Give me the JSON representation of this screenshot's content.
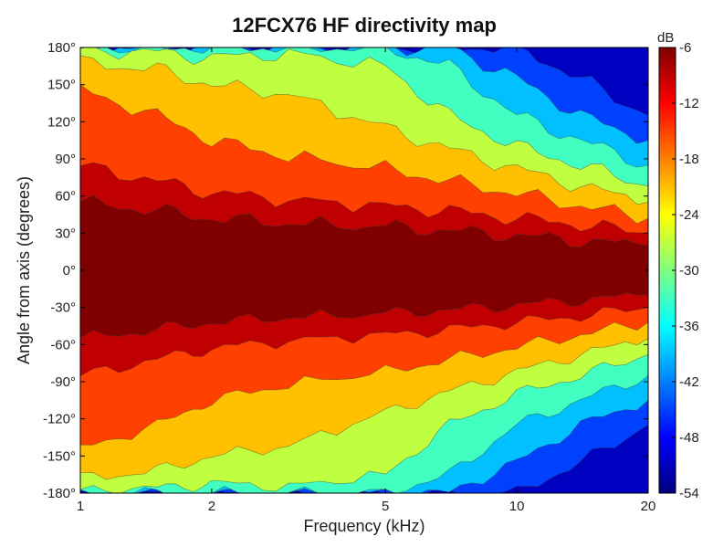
{
  "chart_data": {
    "type": "heatmap",
    "title": "12FCX76 HF directivity map",
    "xlabel": "Frequency (kHz)",
    "ylabel": "Angle from axis (degrees)",
    "x_scale": "log",
    "xlim": [
      1,
      20
    ],
    "x_ticks": [
      1,
      2,
      5,
      10,
      20
    ],
    "x_tick_labels": [
      "1",
      "2",
      "5",
      "10",
      "20"
    ],
    "ylim": [
      -180,
      180
    ],
    "y_ticks": [
      180,
      150,
      120,
      90,
      60,
      30,
      0,
      -30,
      -60,
      -90,
      -120,
      -150,
      -180
    ],
    "y_tick_labels": [
      "180°",
      "150°",
      "120°",
      "90°",
      "60°",
      "30°",
      "0°",
      "-30°",
      "-60°",
      "-90°",
      "-120°",
      "-150°",
      "-180°"
    ],
    "colorbar": {
      "unit": "dB",
      "range": [
        -54,
        -6
      ],
      "ticks": [
        -6,
        -12,
        -18,
        -24,
        -30,
        -36,
        -42,
        -48,
        -54
      ],
      "tick_labels": [
        "-6",
        "-12",
        "-18",
        "-24",
        "-30",
        "-36",
        "-42",
        "-48",
        "-54"
      ],
      "colormap": "jet"
    },
    "contour_levels_db": [
      -6,
      -12,
      -18,
      -24,
      -30,
      -36,
      -42,
      -48,
      -54
    ],
    "contour_boundaries": {
      "frequencies_khz": [
        1,
        1.5,
        2,
        3,
        5,
        7,
        10,
        14,
        20
      ],
      "note": "angle (degrees, symmetric ±) at which level falls below each value",
      "-6": [
        55,
        48,
        42,
        38,
        35,
        32,
        28,
        24,
        20
      ],
      "-12": [
        85,
        72,
        63,
        57,
        52,
        48,
        42,
        37,
        30
      ],
      "-18": [
        145,
        125,
        105,
        92,
        82,
        72,
        62,
        52,
        42
      ],
      "-24": [
        168,
        162,
        150,
        142,
        115,
        98,
        82,
        68,
        55
      ],
      "-30": [
        178,
        176,
        172,
        175,
        165,
        125,
        100,
        85,
        68
      ],
      "-36": [
        180,
        180,
        180,
        180,
        180,
        165,
        125,
        105,
        85
      ],
      "-42": [
        180,
        180,
        180,
        180,
        180,
        180,
        155,
        125,
        105
      ],
      "-48": [
        180,
        180,
        180,
        180,
        180,
        180,
        180,
        155,
        125
      ]
    }
  }
}
